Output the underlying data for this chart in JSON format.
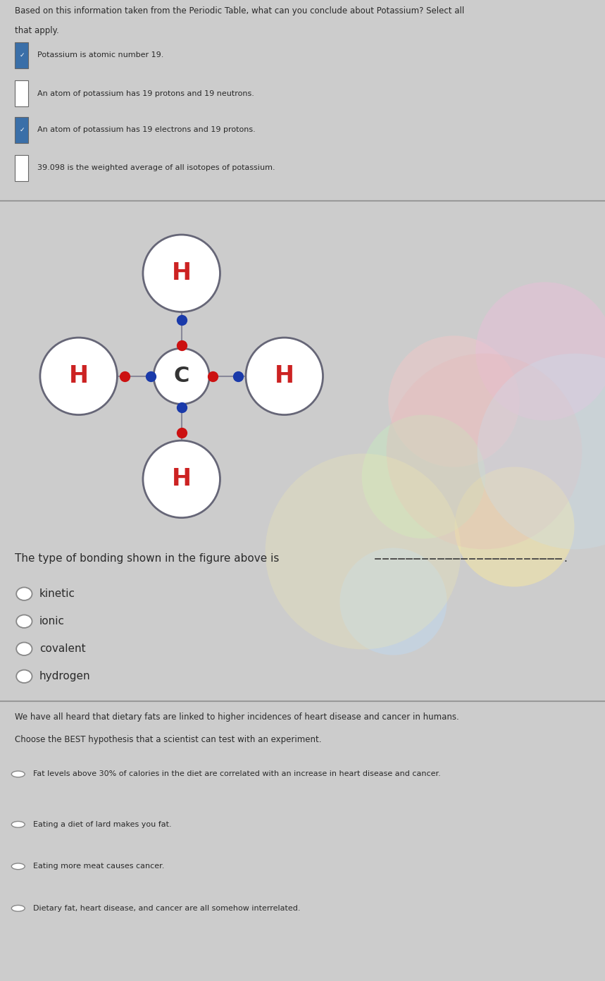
{
  "section1_bg": "#d8d8d8",
  "section2_bg_base": "#b8d4e0",
  "section3_bg": "#d8d8d8",
  "question1_line1": "Based on this information taken from the Periodic Table, what can you conclude about Potassium? Select all",
  "question1_line2": "that apply.",
  "q1_options": [
    {
      "text": "Potassium is atomic number 19.",
      "checked": true
    },
    {
      "text": "An atom of potassium has 19 protons and 19 neutrons.",
      "checked": false
    },
    {
      "text": "An atom of potassium has 19 electrons and 19 protons.",
      "checked": true
    },
    {
      "text": "39.098 is the weighted average of all isotopes of potassium.",
      "checked": false
    }
  ],
  "question2_text": "The type of bonding shown in the figure above is",
  "q2_options": [
    "kinetic",
    "ionic",
    "covalent",
    "hydrogen"
  ],
  "question3_line1": "We have all heard that dietary fats are linked to higher incidences of heart disease and cancer in humans.",
  "question3_line2": "Choose the BEST hypothesis that a scientist can test with an experiment.",
  "q3_options": [
    "Fat levels above 30% of calories in the diet are correlated with an increase in heart disease and cancer.",
    "Eating a diet of lard makes you fat.",
    "Eating more meat causes cancer.",
    "Dietary fat, heart disease, and cancer are all somehow interrelated."
  ],
  "check_color": "#3a6fa8",
  "text_color": "#2a2a2a",
  "bond_blue": "#1a3aaa",
  "bond_red": "#cc1111",
  "atom_edge": "#555566"
}
